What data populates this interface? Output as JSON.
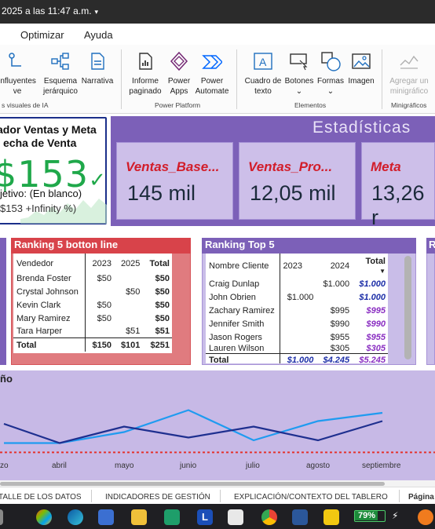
{
  "titlebar": {
    "text": "2025 a las 11:47 a.m.",
    "caret": "▾"
  },
  "menu": {
    "items": [
      "Optimizar",
      "Ayuda"
    ]
  },
  "ribbon": {
    "buttons": [
      {
        "name": "influyentes",
        "line1": "influyentes",
        "line2": "ve"
      },
      {
        "name": "esquema",
        "line1": "Esquema",
        "line2": "jerárquico"
      },
      {
        "name": "narrativa",
        "line1": "Narrativa",
        "line2": ""
      },
      {
        "name": "informe",
        "line1": "Informe",
        "line2": "paginado"
      },
      {
        "name": "power-apps",
        "line1": "Power",
        "line2": "Apps"
      },
      {
        "name": "power-automate",
        "line1": "Power",
        "line2": "Automate"
      },
      {
        "name": "cuadro-texto",
        "line1": "Cuadro de",
        "line2": "texto"
      },
      {
        "name": "botones",
        "line1": "Botones",
        "line2": "⌄"
      },
      {
        "name": "formas",
        "line1": "Formas",
        "line2": "⌄"
      },
      {
        "name": "imagen",
        "line1": "Imagen",
        "line2": ""
      },
      {
        "name": "minigrafico",
        "line1": "Agregar un",
        "line2": "minigráfico"
      }
    ],
    "groups": [
      "s visuales de IA",
      "Power Platform",
      "Elementos",
      "Minigráficos"
    ]
  },
  "kpi": {
    "title_line1": "ador Ventas y Meta",
    "title_line2": "echa de Venta",
    "value": "153",
    "value_prefix": "$",
    "check": "✓",
    "objective": "jetivo: (En blanco)",
    "meta": "$153 +Infinity %)"
  },
  "stats": {
    "title": "Estadísticas",
    "boxes": [
      {
        "label": "Ventas_Base...",
        "value": "145 mil"
      },
      {
        "label": "Ventas_Pro...",
        "value": "12,05 mil"
      },
      {
        "label": "Meta",
        "value": "13,26 r"
      }
    ]
  },
  "ranking_bottom": {
    "title": "Ranking 5 botton line",
    "headers": [
      "Vendedor",
      "2023",
      "2025",
      "Total"
    ],
    "rows": [
      [
        "Brenda Foster",
        "$50",
        "",
        "$50"
      ],
      [
        "Crystal Johnson",
        "",
        "$50",
        "$50"
      ],
      [
        "Kevin Clark",
        "$50",
        "",
        "$50"
      ],
      [
        "Mary Ramirez",
        "$50",
        "",
        "$50"
      ],
      [
        "Tara Harper",
        "",
        "$51",
        "$51"
      ]
    ],
    "total": [
      "Total",
      "$150",
      "$101",
      "$251"
    ]
  },
  "ranking_top": {
    "title": "Ranking Top 5",
    "headers": [
      "Nombre Cliente",
      "2023",
      "2024",
      "Total"
    ],
    "rows": [
      [
        "Craig Dunlap",
        "",
        "$1.000",
        "$1.000"
      ],
      [
        "John Obrien",
        "$1.000",
        "",
        "$1.000"
      ],
      [
        "Zachary Ramirez",
        "",
        "$995",
        "$995"
      ],
      [
        "Jennifer Smith",
        "",
        "$990",
        "$990"
      ],
      [
        "Jason Rogers",
        "",
        "$955",
        "$955"
      ],
      [
        "Lauren Wilson",
        "",
        "$305",
        "$305"
      ]
    ],
    "total": [
      "Total",
      "$1.000",
      "$4.245",
      "$5.245"
    ]
  },
  "right_panel": {
    "title_initial": "R"
  },
  "chart": {
    "title": "ño",
    "months": [
      "zo",
      "abril",
      "mayo",
      "junio",
      "julio",
      "agosto",
      "septiembre"
    ]
  },
  "chart_data": {
    "type": "line",
    "title": "ño",
    "categories": [
      "zo",
      "abril",
      "mayo",
      "junio",
      "julio",
      "agosto",
      "septiembre"
    ],
    "series": [
      {
        "color": "#1f9bf0",
        "values": [
          0.25,
          0.25,
          0.45,
          0.85,
          0.3,
          0.65,
          0.8
        ]
      },
      {
        "color": "#1e2f8f",
        "values": [
          0.6,
          0.25,
          0.55,
          0.35,
          0.55,
          0.3,
          0.65
        ]
      }
    ],
    "reference_line": {
      "color": "#e5322c",
      "style": "dotted",
      "value": 0.08
    },
    "ylim": [
      0,
      1
    ]
  },
  "pagetabs": [
    "TALLE DE LOS DATOS",
    "INDICADORES DE GESTIÓN",
    "EXPLICACIÓN/CONTEXTO DEL TABLERO",
    "Página"
  ],
  "taskbar": {
    "battery": "79%"
  }
}
